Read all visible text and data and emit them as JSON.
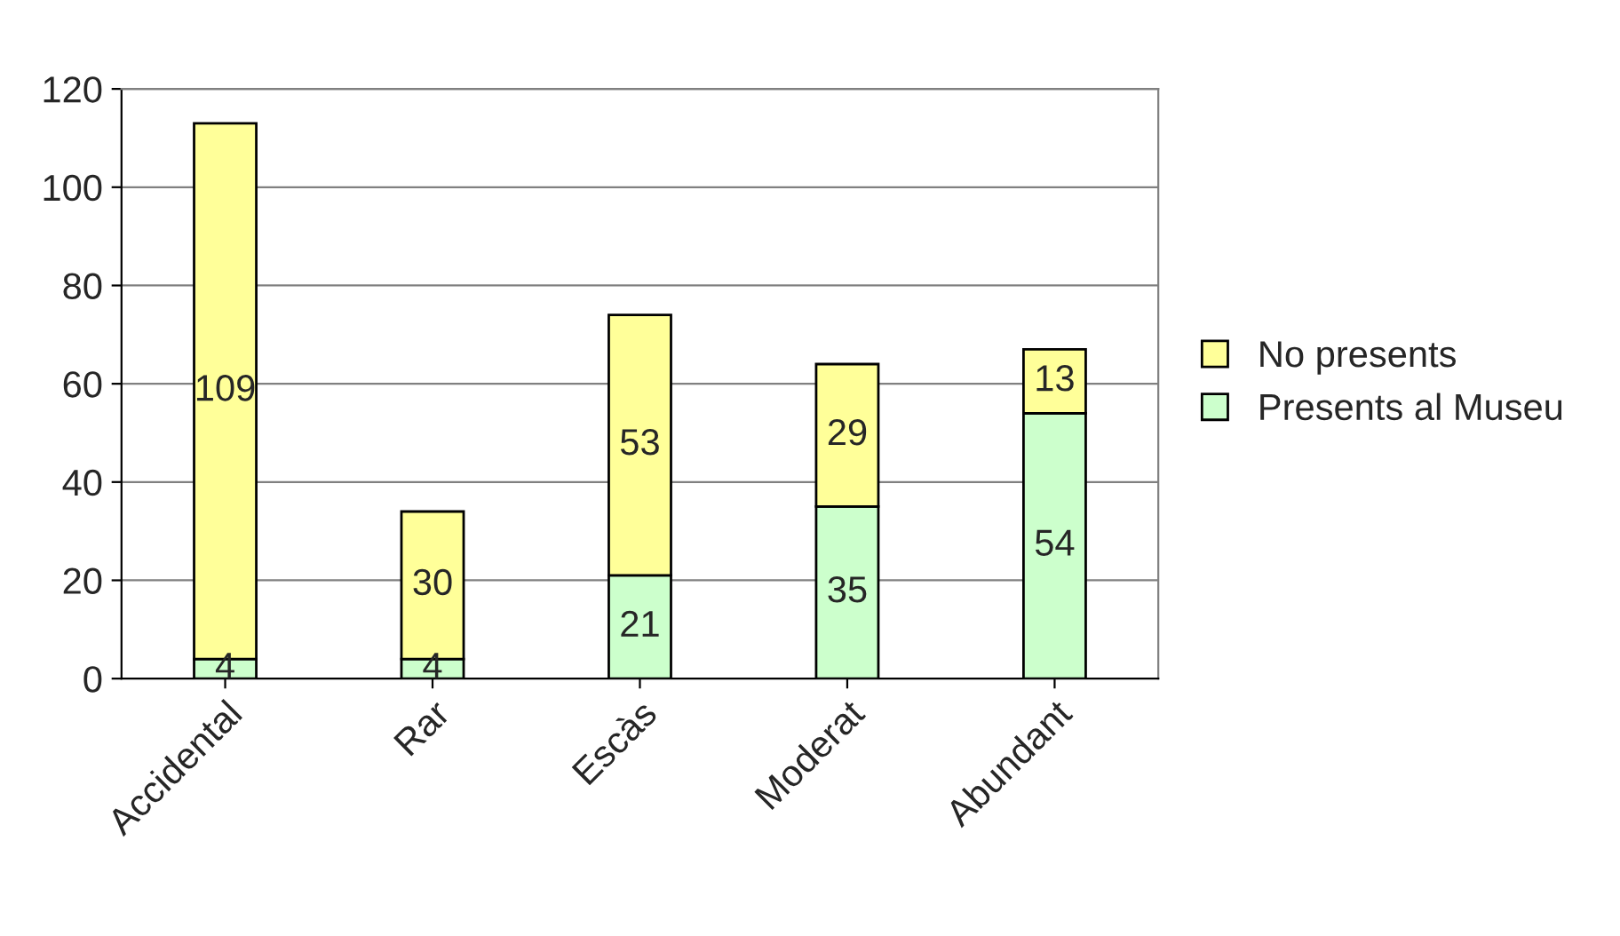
{
  "chart_data": {
    "type": "bar",
    "stacked": true,
    "categories": [
      "Accidental",
      "Rar",
      "Escàs",
      "Moderat",
      "Abundant"
    ],
    "series": [
      {
        "name": "Presents al Museu",
        "color": "#ccffcc",
        "values": [
          4,
          4,
          21,
          35,
          54
        ]
      },
      {
        "name": "No presents",
        "color": "#ffff99",
        "values": [
          109,
          30,
          53,
          29,
          13
        ]
      }
    ],
    "ylim": [
      0,
      120
    ],
    "yticks": [
      0,
      20,
      40,
      60,
      80,
      100,
      120
    ],
    "grid": "y",
    "legend": "right",
    "data_labels": true
  }
}
